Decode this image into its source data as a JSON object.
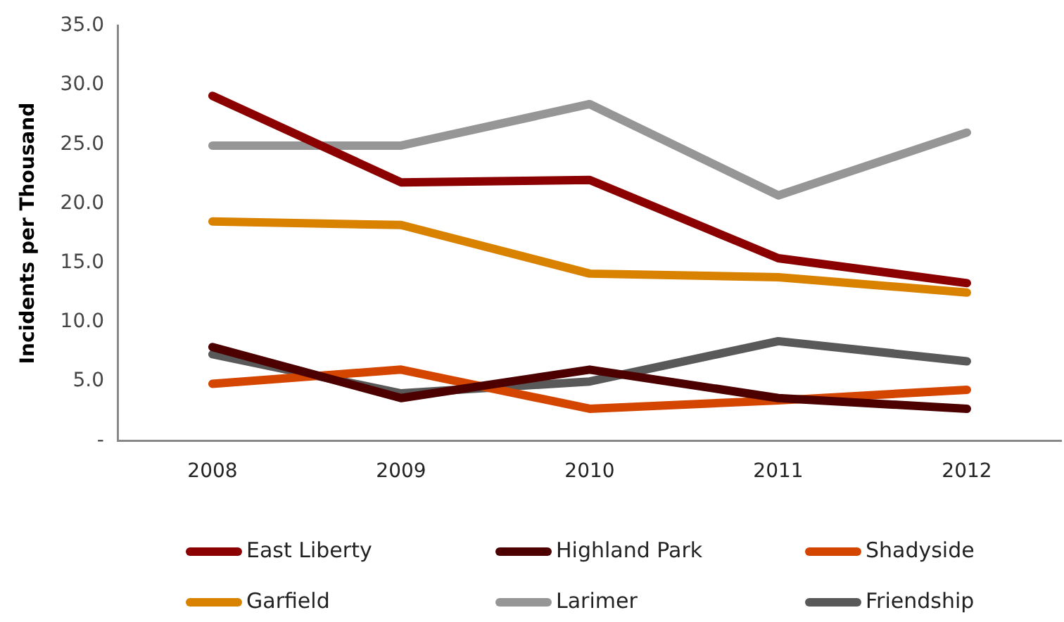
{
  "chart_data": {
    "type": "line",
    "ylabel": "Incidents per Thousand",
    "categories": [
      "2008",
      "2009",
      "2010",
      "2011",
      "2012"
    ],
    "series": [
      {
        "name": "East Liberty",
        "color": "#8b0000",
        "values": [
          29.1,
          21.8,
          22.0,
          15.4,
          13.3
        ]
      },
      {
        "name": "Highland Park",
        "color": "#4d0000",
        "values": [
          7.9,
          3.6,
          6.0,
          3.6,
          2.7
        ]
      },
      {
        "name": "Shadyside",
        "color": "#d44500",
        "values": [
          4.8,
          6.0,
          2.7,
          3.4,
          4.3
        ]
      },
      {
        "name": "Garfield",
        "color": "#d98200",
        "values": [
          18.5,
          18.2,
          14.1,
          13.8,
          12.5
        ]
      },
      {
        "name": "Larimer",
        "color": "#969696",
        "values": [
          24.9,
          24.9,
          28.4,
          20.7,
          26.0
        ]
      },
      {
        "name": "Friendship",
        "color": "#595959",
        "values": [
          7.3,
          4.0,
          5.0,
          8.4,
          6.7
        ]
      }
    ],
    "ylim": [
      0,
      35
    ],
    "yticks": [
      {
        "value": 0,
        "label": "-"
      },
      {
        "value": 5,
        "label": "5.0"
      },
      {
        "value": 10,
        "label": "10.0"
      },
      {
        "value": 15,
        "label": "15.0"
      },
      {
        "value": 20,
        "label": "20.0"
      },
      {
        "value": 25,
        "label": "25.0"
      },
      {
        "value": 30,
        "label": "30.0"
      },
      {
        "value": 35,
        "label": "35.0"
      }
    ],
    "grid": false,
    "legend": "bottom",
    "marker": "none",
    "line_style": "solid"
  }
}
